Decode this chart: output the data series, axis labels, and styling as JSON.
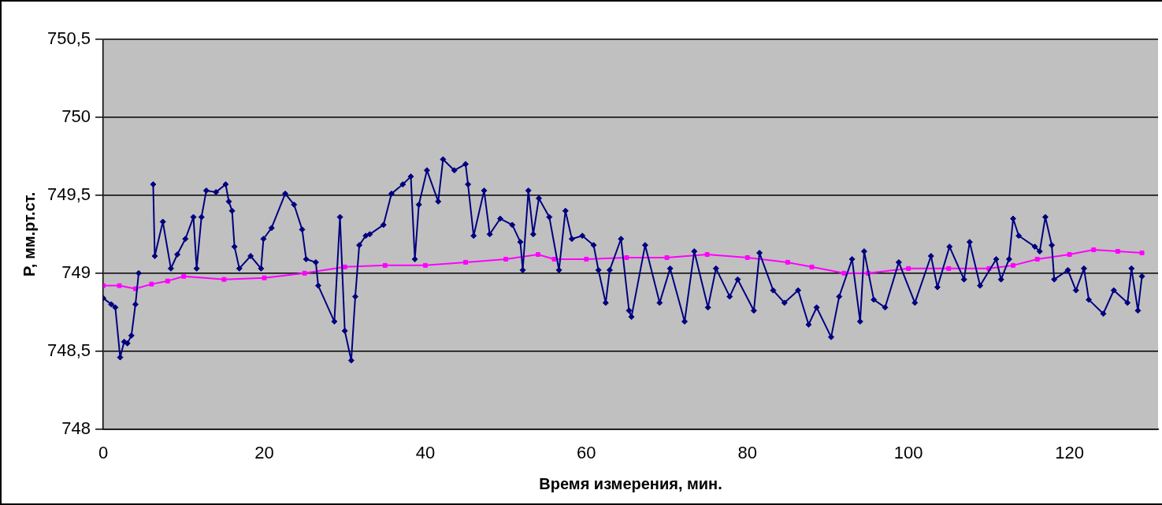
{
  "chart_data": {
    "type": "line",
    "xlabel": "Время измерения, мин.",
    "ylabel": "P, мм.рт.ст.",
    "xlim": [
      0,
      131
    ],
    "xticks": [
      0,
      20,
      40,
      60,
      80,
      100,
      120
    ],
    "ylim": [
      748,
      750.5
    ],
    "yticks": [
      748,
      {
        "value": 748.5,
        "label": "748,5"
      },
      749,
      {
        "value": 749.5,
        "label": "749,5"
      },
      750,
      {
        "value": 750.5,
        "label": "750,5"
      }
    ],
    "grid": "y",
    "legend": false,
    "line_style": "solid",
    "series": [
      {
        "color": "#000080",
        "marker": "diamond",
        "x": [
          0,
          1,
          1.5,
          2.1,
          2.6,
          3,
          3.5,
          4,
          4.4,
          4.6,
          5.9,
          6.2,
          6.4,
          7.4,
          8.4,
          9.2,
          10.2,
          11.2,
          11.6,
          12.2,
          12.8,
          14,
          15.2,
          15.6,
          16,
          16.3,
          16.9,
          18.3,
          19.6,
          19.9,
          20.9,
          22.6,
          23.7,
          24.7,
          25.2,
          26.4,
          26.7,
          28.7,
          29.4,
          30,
          30.8,
          31.3,
          31.8,
          32.6,
          33.1,
          34.8,
          35.8,
          37.2,
          38.2,
          38.7,
          39.2,
          40.2,
          41.6,
          42.2,
          43.6,
          45,
          45.3,
          46,
          47.3,
          48,
          49.3,
          50.8,
          51.8,
          52.1,
          52.8,
          53.4,
          54.1,
          55.4,
          56.6,
          57.4,
          58.2,
          59.5,
          60.9,
          61.5,
          62.4,
          62.9,
          64.3,
          65.3,
          65.6,
          67.3,
          69.1,
          70.4,
          72.2,
          73.4,
          75.1,
          76.1,
          77.8,
          78.8,
          80.8,
          81.5,
          83.2,
          84.6,
          86.3,
          87.6,
          88.6,
          90.4,
          91.4,
          93,
          94,
          94.5,
          95.7,
          97.1,
          98.8,
          100.8,
          102.8,
          103.6,
          105.1,
          106.9,
          107.6,
          108.9,
          110.9,
          111.5,
          112.5,
          113,
          113.7,
          115.7,
          116.3,
          117,
          117.8,
          118.1,
          119.8,
          120.8,
          121.8,
          122.4,
          124.2,
          125.5,
          127.2,
          127.7,
          128.5,
          129
        ],
        "values": [
          748.84,
          748.8,
          748.78,
          748.46,
          748.56,
          748.55,
          748.6,
          748.8,
          749,
          null,
          null,
          749.57,
          749.11,
          749.33,
          749.03,
          749.12,
          749.22,
          749.36,
          749.03,
          749.36,
          749.53,
          749.52,
          749.57,
          749.46,
          749.4,
          749.17,
          749.03,
          749.11,
          749.03,
          749.22,
          749.29,
          749.51,
          749.44,
          749.28,
          749.09,
          749.07,
          748.92,
          748.69,
          749.36,
          748.63,
          748.44,
          748.85,
          749.18,
          749.24,
          749.25,
          749.31,
          749.51,
          749.57,
          749.62,
          749.09,
          749.44,
          749.66,
          749.46,
          749.73,
          749.66,
          749.7,
          749.57,
          749.24,
          749.53,
          749.25,
          749.35,
          749.31,
          749.2,
          749.02,
          749.53,
          749.25,
          749.48,
          749.36,
          749.02,
          749.4,
          749.22,
          749.24,
          749.18,
          749.02,
          748.81,
          749.02,
          749.22,
          748.76,
          748.72,
          749.18,
          748.81,
          749.03,
          748.69,
          749.14,
          748.78,
          749.03,
          748.85,
          748.96,
          748.76,
          749.13,
          748.89,
          748.81,
          748.89,
          748.67,
          748.78,
          748.59,
          748.85,
          749.09,
          748.69,
          749.14,
          748.83,
          748.78,
          749.07,
          748.81,
          749.11,
          748.91,
          749.17,
          748.96,
          749.2,
          748.92,
          749.09,
          748.96,
          749.09,
          749.35,
          749.24,
          749.17,
          749.14,
          749.36,
          749.18,
          748.96,
          749.02,
          748.89,
          749.03,
          748.83,
          748.74,
          748.89,
          748.81,
          749.03,
          748.76,
          748.98
        ]
      },
      {
        "color": "#ff00ff",
        "marker": "square",
        "x": [
          0,
          2,
          4,
          6,
          8,
          10,
          15,
          20,
          25,
          30,
          35,
          40,
          45,
          50,
          54,
          56,
          60,
          65,
          70,
          75,
          80,
          85,
          88,
          92,
          95,
          100,
          105,
          110,
          113,
          116,
          120,
          123,
          126,
          129
        ],
        "values": [
          748.92,
          748.92,
          748.9,
          748.93,
          748.95,
          748.98,
          748.96,
          748.97,
          749,
          749.04,
          749.05,
          749.05,
          749.07,
          749.09,
          749.12,
          749.09,
          749.09,
          749.1,
          749.1,
          749.12,
          749.1,
          749.07,
          749.04,
          749,
          749,
          749.03,
          749.03,
          749.03,
          749.05,
          749.09,
          749.12,
          749.15,
          749.14,
          749.13
        ]
      }
    ]
  }
}
